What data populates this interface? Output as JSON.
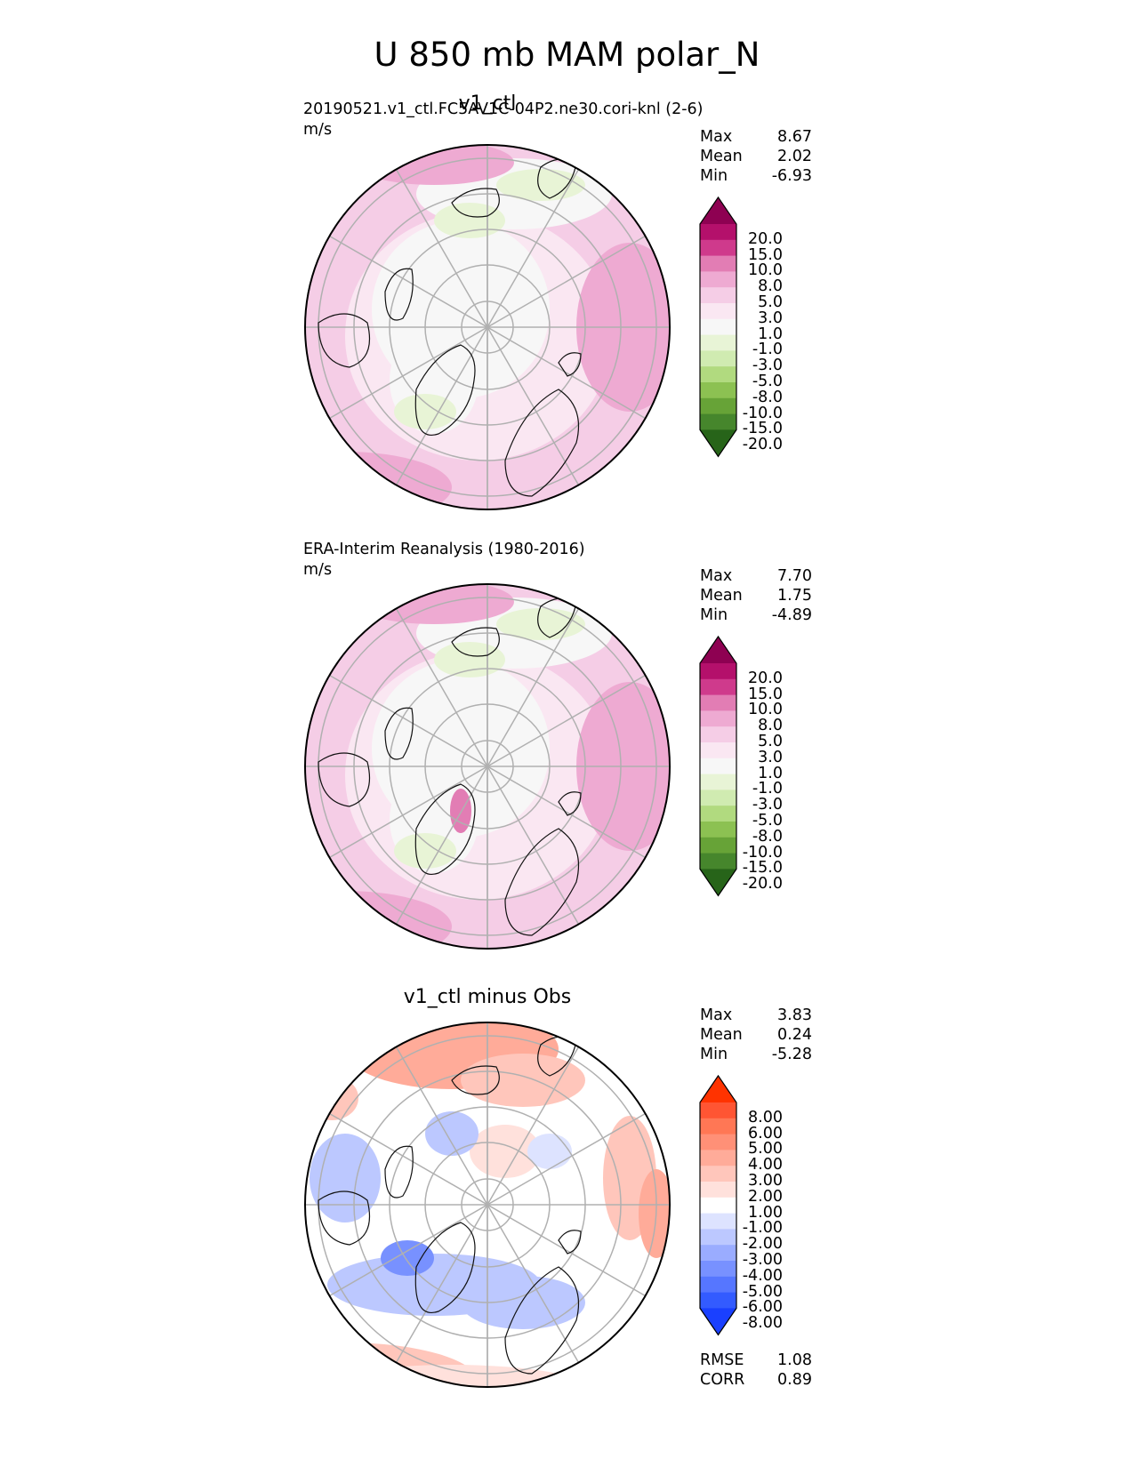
{
  "figure": {
    "title": "U 850 mb MAM polar_N"
  },
  "chart_data": [
    {
      "type": "heatmap",
      "panel": "test",
      "title": "v1_ctl",
      "source": "20190521.v1_ctl.FC5AV1C-04P2.ne30.cori-knl (2-6)",
      "units": "m/s",
      "projection": "north polar stereographic",
      "stats": [
        {
          "label": "Max",
          "value": "8.67"
        },
        {
          "label": "Mean",
          "value": "2.02"
        },
        {
          "label": "Min",
          "value": "-6.93"
        }
      ],
      "colorbar": {
        "levels": [
          "20.0",
          "15.0",
          "10.0",
          "8.0",
          "5.0",
          "3.0",
          "1.0",
          "-1.0",
          "-3.0",
          "-5.0",
          "-8.0",
          "-10.0",
          "-15.0",
          "-20.0"
        ],
        "colors": [
          "#8e0152",
          "#b4106b",
          "#cf3a8c",
          "#e27db4",
          "#eeaad2",
          "#f5cde6",
          "#fae7f2",
          "#f7f7f7",
          "#e8f4d6",
          "#d0ebb1",
          "#b1da7f",
          "#8cc152",
          "#67a337",
          "#46862c",
          "#276419"
        ],
        "extend": "both"
      }
    },
    {
      "type": "heatmap",
      "panel": "reference",
      "title": "",
      "source": "ERA-Interim Reanalysis (1980-2016)",
      "units": "m/s",
      "projection": "north polar stereographic",
      "stats": [
        {
          "label": "Max",
          "value": "7.70"
        },
        {
          "label": "Mean",
          "value": "1.75"
        },
        {
          "label": "Min",
          "value": "-4.89"
        }
      ],
      "colorbar": {
        "levels": [
          "20.0",
          "15.0",
          "10.0",
          "8.0",
          "5.0",
          "3.0",
          "1.0",
          "-1.0",
          "-3.0",
          "-5.0",
          "-8.0",
          "-10.0",
          "-15.0",
          "-20.0"
        ],
        "colors": [
          "#8e0152",
          "#b4106b",
          "#cf3a8c",
          "#e27db4",
          "#eeaad2",
          "#f5cde6",
          "#fae7f2",
          "#f7f7f7",
          "#e8f4d6",
          "#d0ebb1",
          "#b1da7f",
          "#8cc152",
          "#67a337",
          "#46862c",
          "#276419"
        ],
        "extend": "both"
      }
    },
    {
      "type": "heatmap",
      "panel": "difference",
      "title": "v1_ctl minus Obs",
      "source": "",
      "units": "",
      "projection": "north polar stereographic",
      "stats": [
        {
          "label": "Max",
          "value": "3.83"
        },
        {
          "label": "Mean",
          "value": "0.24"
        },
        {
          "label": "Min",
          "value": "-5.28"
        }
      ],
      "extra_stats": [
        {
          "label": "RMSE",
          "value": "1.08"
        },
        {
          "label": "CORR",
          "value": "0.89"
        }
      ],
      "colorbar": {
        "levels": [
          "8.00",
          "6.00",
          "5.00",
          "4.00",
          "3.00",
          "2.00",
          "1.00",
          "-1.00",
          "-2.00",
          "-3.00",
          "-4.00",
          "-5.00",
          "-6.00",
          "-8.00"
        ],
        "colors": [
          "#ff3300",
          "#ff5533",
          "#ff7755",
          "#ff9077",
          "#ffab99",
          "#ffc6bb",
          "#ffe1dc",
          "#ffffff",
          "#dde3ff",
          "#bcc8ff",
          "#9aacff",
          "#7891ff",
          "#5676ff",
          "#335bff",
          "#1a40ff"
        ],
        "extend": "both"
      }
    }
  ]
}
